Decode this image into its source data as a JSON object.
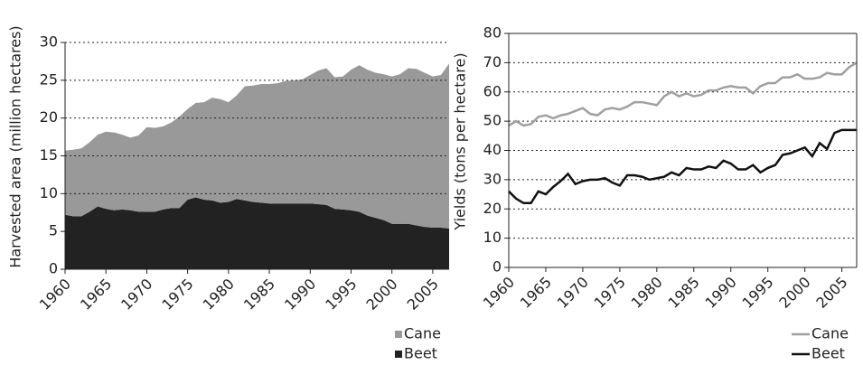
{
  "chart_data": [
    {
      "type": "area",
      "y_label": "Harvested area (million hectares)",
      "stacked": true,
      "grid": true,
      "legend": "bottom-right",
      "x": [
        1960,
        1961,
        1962,
        1963,
        1964,
        1965,
        1966,
        1967,
        1968,
        1969,
        1970,
        1971,
        1972,
        1973,
        1974,
        1975,
        1976,
        1977,
        1978,
        1979,
        1980,
        1981,
        1982,
        1983,
        1984,
        1985,
        1986,
        1987,
        1988,
        1989,
        1990,
        1991,
        1992,
        1993,
        1994,
        1995,
        1996,
        1997,
        1998,
        1999,
        2000,
        2001,
        2002,
        2003,
        2004,
        2005,
        2006,
        2007
      ],
      "xlim": [
        1960,
        2007
      ],
      "xticks": [
        1960,
        1965,
        1970,
        1975,
        1980,
        1985,
        1990,
        1995,
        2000,
        2005
      ],
      "ylim": [
        0,
        30
      ],
      "yticks": [
        0,
        5,
        10,
        15,
        20,
        25,
        30
      ],
      "series": [
        {
          "name": "Beet",
          "color": "#222222",
          "values": [
            7.2,
            7.0,
            7.0,
            7.6,
            8.3,
            8.0,
            7.8,
            7.9,
            7.8,
            7.6,
            7.6,
            7.6,
            7.9,
            8.1,
            8.1,
            9.2,
            9.5,
            9.2,
            9.1,
            8.8,
            8.9,
            9.3,
            9.1,
            8.9,
            8.8,
            8.7,
            8.7,
            8.7,
            8.7,
            8.7,
            8.7,
            8.6,
            8.5,
            8.0,
            7.9,
            7.8,
            7.6,
            7.1,
            6.8,
            6.5,
            6.0,
            6.0,
            6.0,
            5.8,
            5.6,
            5.5,
            5.5,
            5.4
          ]
        },
        {
          "name": "Cane",
          "color": "#999999",
          "values": [
            8.5,
            8.8,
            9.0,
            9.2,
            9.5,
            10.2,
            10.3,
            9.9,
            9.6,
            10.1,
            11.2,
            11.1,
            11.0,
            11.3,
            12.1,
            12.0,
            12.5,
            12.9,
            13.6,
            13.7,
            13.2,
            13.7,
            15.1,
            15.4,
            15.7,
            15.8,
            15.9,
            16.2,
            16.3,
            16.4,
            17.0,
            17.7,
            18.1,
            17.4,
            17.6,
            18.6,
            19.4,
            19.3,
            19.2,
            19.3,
            19.5,
            19.8,
            20.6,
            20.7,
            20.4,
            20.0,
            20.2,
            21.8
          ]
        }
      ]
    },
    {
      "type": "line",
      "y_label": "Yields (tons per hectare)",
      "grid": true,
      "legend": "bottom-right",
      "x": [
        1960,
        1961,
        1962,
        1963,
        1964,
        1965,
        1966,
        1967,
        1968,
        1969,
        1970,
        1971,
        1972,
        1973,
        1974,
        1975,
        1976,
        1977,
        1978,
        1979,
        1980,
        1981,
        1982,
        1983,
        1984,
        1985,
        1986,
        1987,
        1988,
        1989,
        1990,
        1991,
        1992,
        1993,
        1994,
        1995,
        1996,
        1997,
        1998,
        1999,
        2000,
        2001,
        2002,
        2003,
        2004,
        2005,
        2006,
        2007
      ],
      "xlim": [
        1960,
        2007
      ],
      "xticks": [
        1960,
        1965,
        1970,
        1975,
        1980,
        1985,
        1990,
        1995,
        2000,
        2005
      ],
      "ylim": [
        0,
        80
      ],
      "yticks": [
        0,
        10,
        20,
        30,
        40,
        50,
        60,
        70,
        80
      ],
      "series": [
        {
          "name": "Cane",
          "color": "#a0a0a0",
          "values": [
            48.5,
            50,
            48.5,
            49,
            51.5,
            52,
            51,
            52,
            52.5,
            53.5,
            54.5,
            52.5,
            52,
            54,
            54.5,
            54,
            55,
            56.5,
            56.5,
            56,
            55.5,
            58.5,
            60,
            58.5,
            59.5,
            58.5,
            59,
            60.5,
            60.5,
            61.5,
            62,
            61.5,
            61.5,
            59.5,
            62,
            63,
            63,
            65,
            65,
            66,
            64.5,
            64.5,
            65,
            66.5,
            66,
            66,
            68.5,
            70
          ]
        },
        {
          "name": "Beet",
          "color": "#111111",
          "values": [
            26,
            23.5,
            22,
            22,
            26,
            25,
            27.5,
            29.5,
            32,
            28.5,
            29.5,
            30,
            30,
            30.5,
            29,
            28,
            31.5,
            31.5,
            31,
            30,
            30.5,
            31,
            32.5,
            31.5,
            34,
            33.5,
            33.5,
            34.5,
            34,
            36.5,
            35.5,
            33.5,
            33.5,
            35,
            32.5,
            34,
            35,
            38.5,
            39,
            40,
            41,
            38,
            42.5,
            40.5,
            46,
            47,
            47,
            47
          ]
        }
      ]
    }
  ]
}
